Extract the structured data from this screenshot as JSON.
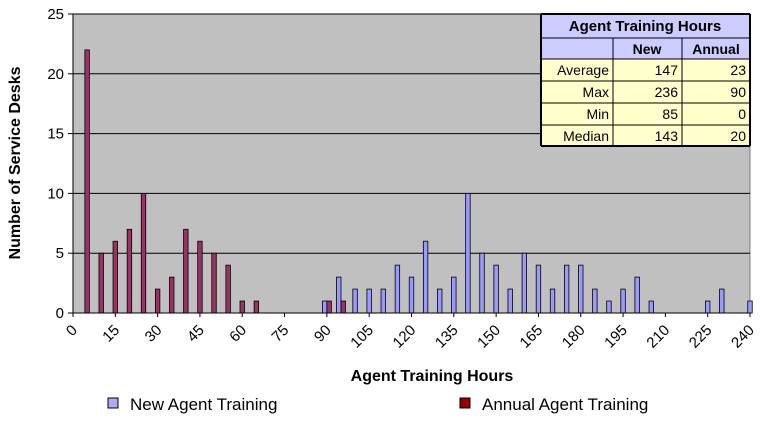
{
  "chart_data": {
    "type": "bar",
    "xlabel": "Agent Training Hours",
    "ylabel": "Number of Service Desks",
    "xlim": [
      0,
      240
    ],
    "ylim": [
      0,
      25
    ],
    "x_ticks": [
      0,
      15,
      30,
      45,
      60,
      75,
      90,
      105,
      120,
      135,
      150,
      165,
      180,
      195,
      210,
      225,
      240
    ],
    "y_ticks": [
      0,
      5,
      10,
      15,
      20,
      25
    ],
    "grid": true,
    "legend_position": "bottom",
    "series": [
      {
        "name": "New Agent Training",
        "color": "#9999ff",
        "points": [
          {
            "x": 90,
            "y": 1
          },
          {
            "x": 95,
            "y": 3
          },
          {
            "x": 100,
            "y": 2
          },
          {
            "x": 105,
            "y": 2
          },
          {
            "x": 110,
            "y": 2
          },
          {
            "x": 115,
            "y": 4
          },
          {
            "x": 120,
            "y": 3
          },
          {
            "x": 125,
            "y": 6
          },
          {
            "x": 130,
            "y": 2
          },
          {
            "x": 135,
            "y": 3
          },
          {
            "x": 140,
            "y": 10
          },
          {
            "x": 145,
            "y": 5
          },
          {
            "x": 150,
            "y": 4
          },
          {
            "x": 155,
            "y": 2
          },
          {
            "x": 160,
            "y": 5
          },
          {
            "x": 165,
            "y": 4
          },
          {
            "x": 170,
            "y": 2
          },
          {
            "x": 175,
            "y": 4
          },
          {
            "x": 180,
            "y": 4
          },
          {
            "x": 185,
            "y": 2
          },
          {
            "x": 190,
            "y": 1
          },
          {
            "x": 195,
            "y": 2
          },
          {
            "x": 200,
            "y": 3
          },
          {
            "x": 205,
            "y": 1
          },
          {
            "x": 225,
            "y": 1
          },
          {
            "x": 230,
            "y": 2
          },
          {
            "x": 240,
            "y": 1
          }
        ]
      },
      {
        "name": "Annual Agent Training",
        "color": "#993366",
        "points": [
          {
            "x": 5,
            "y": 22
          },
          {
            "x": 10,
            "y": 5
          },
          {
            "x": 15,
            "y": 6
          },
          {
            "x": 20,
            "y": 7
          },
          {
            "x": 25,
            "y": 10
          },
          {
            "x": 30,
            "y": 2
          },
          {
            "x": 35,
            "y": 3
          },
          {
            "x": 40,
            "y": 7
          },
          {
            "x": 45,
            "y": 6
          },
          {
            "x": 50,
            "y": 5
          },
          {
            "x": 55,
            "y": 4
          },
          {
            "x": 60,
            "y": 1
          },
          {
            "x": 65,
            "y": 1
          },
          {
            "x": 90,
            "y": 1
          },
          {
            "x": 95,
            "y": 1
          }
        ]
      }
    ]
  },
  "summary_table": {
    "title": "Agent Training Hours",
    "headers": [
      "",
      "New",
      "Annual"
    ],
    "rows": [
      {
        "label": "Average",
        "new": "147",
        "annual": "23"
      },
      {
        "label": "Max",
        "new": "236",
        "annual": "90"
      },
      {
        "label": "Min",
        "new": "85",
        "annual": "0"
      },
      {
        "label": "Median",
        "new": "143",
        "annual": "20"
      }
    ]
  },
  "legend": {
    "new_label": "New Agent Training",
    "annual_label": "Annual Agent Training",
    "new_swatch": "#aaaaff",
    "annual_swatch": "#990000"
  },
  "colors": {
    "plot_background": "#c0c0c0",
    "table_title_bg": "#ccccff",
    "table_body_bg": "#ffffcc"
  }
}
